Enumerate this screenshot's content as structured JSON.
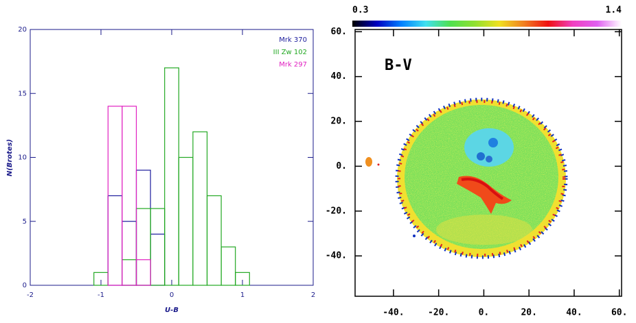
{
  "chart_data": [
    {
      "type": "histogram",
      "xlabel": "U-B",
      "ylabel": "N(Brotes)",
      "bins": [
        -1.1,
        -0.9,
        -0.7,
        -0.5,
        -0.3,
        -0.1,
        0.1,
        0.3,
        0.5,
        0.7,
        0.9,
        1.1
      ],
      "series": [
        {
          "name": "Mrk 370",
          "color": "#1c1c9c",
          "values": [
            0,
            7,
            5,
            9,
            4,
            0,
            0,
            0,
            0,
            0,
            0
          ]
        },
        {
          "name": "III Zw 102",
          "color": "#22a822",
          "values": [
            1,
            0,
            2,
            6,
            6,
            17,
            10,
            12,
            7,
            3,
            1
          ]
        },
        {
          "name": "Mrk 297",
          "color": "#e020c0",
          "values": [
            0,
            14,
            14,
            2,
            0,
            0,
            0,
            0,
            0,
            0,
            0
          ]
        }
      ],
      "xlim": [
        -2,
        2
      ],
      "xticks": [
        -2,
        -1,
        0,
        1,
        2
      ],
      "ylim": [
        0,
        20
      ],
      "yticks": [
        0,
        5,
        10,
        15,
        20
      ],
      "legend": "upper right"
    },
    {
      "type": "image",
      "annotation": "B-V",
      "clim": [
        0.3,
        1.4
      ],
      "colormap": [
        "#000000",
        "#0000c0",
        "#0080ff",
        "#40e0f0",
        "#50e050",
        "#90e030",
        "#f0e020",
        "#f08020",
        "#f01010",
        "#f040c0",
        "#e060f0",
        "#ffffff"
      ],
      "xlim": [
        -57,
        61
      ],
      "xticks": [
        {
          "value": -40,
          "label": "-40."
        },
        {
          "value": -20,
          "label": "-20."
        },
        {
          "value": 0,
          "label": "0."
        },
        {
          "value": 20,
          "label": "20."
        },
        {
          "value": 40,
          "label": "40."
        },
        {
          "value": 60,
          "label": "60."
        }
      ],
      "ylim": [
        -58,
        61
      ],
      "yticks": [
        {
          "value": 60,
          "label": "60."
        },
        {
          "value": 40,
          "label": "40."
        },
        {
          "value": 20,
          "label": "20."
        },
        {
          "value": 0,
          "label": "0."
        },
        {
          "value": -20,
          "label": "-20."
        },
        {
          "value": -40,
          "label": "-40."
        }
      ]
    }
  ]
}
